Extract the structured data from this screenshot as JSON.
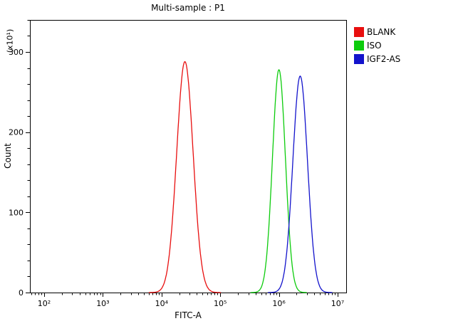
{
  "chart_data": {
    "type": "line",
    "title": "Multi-sample : P1",
    "xlabel": "FITC-A",
    "ylabel": "Count",
    "y_axis_multiplier_label": "(x10¹)",
    "x_scale": "log10",
    "x_tick_exponents": [
      2,
      3,
      4,
      5,
      6,
      7
    ],
    "x_tick_labels": [
      "10²",
      "10³",
      "10⁴",
      "10⁵",
      "10⁶",
      "10⁷"
    ],
    "y_major_ticks": [
      0,
      100,
      200,
      300
    ],
    "y_minor_step": 20,
    "ylim": [
      0,
      340
    ],
    "grid": false,
    "legend_position": "top-right",
    "series": [
      {
        "name": "BLANK",
        "color": "#e80f0f",
        "peak_x": 25000,
        "peak_count": 288,
        "sigma_decades": 0.14
      },
      {
        "name": "ISO",
        "color": "#0ccc0c",
        "peak_x": 1000000,
        "peak_count": 278,
        "sigma_decades": 0.11
      },
      {
        "name": "IGF2-AS",
        "color": "#1313cc",
        "peak_x": 2300000,
        "peak_count": 270,
        "sigma_decades": 0.125
      }
    ]
  }
}
